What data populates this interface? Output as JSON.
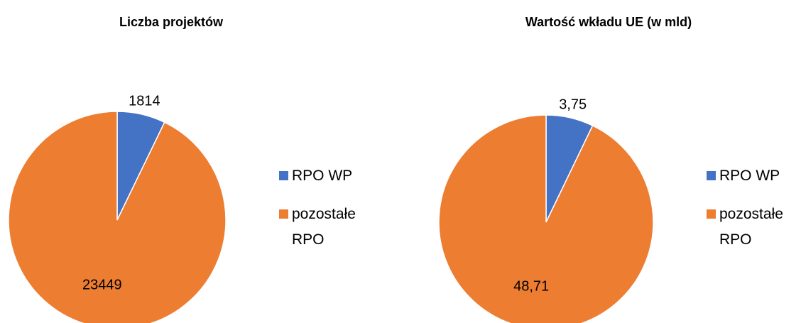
{
  "chart_data": [
    {
      "type": "pie",
      "title": "Liczba projektów",
      "categories": [
        "RPO WP",
        "pozostałe RPO"
      ],
      "values": [
        1814,
        23449
      ],
      "colors": [
        "#4472c4",
        "#ed7d31"
      ]
    },
    {
      "type": "pie",
      "title": "Wartość wkładu UE (w mld)",
      "categories": [
        "RPO WP",
        "pozostałe RPO"
      ],
      "values": [
        3.75,
        48.71
      ],
      "value_labels": [
        "3,75",
        "48,71"
      ],
      "colors": [
        "#4472c4",
        "#ed7d31"
      ]
    }
  ]
}
